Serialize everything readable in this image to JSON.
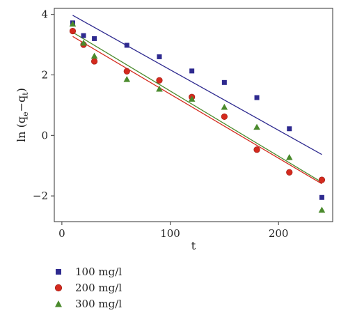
{
  "chart_data": {
    "type": "scatter",
    "xlabel": "t",
    "ylabel_parts": [
      "ln (q",
      "e",
      "−q",
      "t",
      ")"
    ],
    "xlim": [
      -7,
      250
    ],
    "ylim": [
      -2.85,
      4.2
    ],
    "xticks": [
      0,
      100,
      200
    ],
    "yticks": [
      -2,
      0,
      2,
      4
    ],
    "ytick_labels": [
      "−2",
      "0",
      "2",
      "4"
    ],
    "grid": false,
    "legend_position": "bottom-left, below plot",
    "series": [
      {
        "name": "100 mg/l",
        "marker": "square",
        "color": "#2e2a8f",
        "x": [
          10,
          20,
          30,
          60,
          90,
          120,
          150,
          180,
          210,
          240
        ],
        "y": [
          3.72,
          3.3,
          3.2,
          2.98,
          2.6,
          2.13,
          1.75,
          1.25,
          0.22,
          -2.05
        ],
        "fit": {
          "x": [
            10,
            240
          ],
          "y": [
            3.97,
            -0.63
          ]
        }
      },
      {
        "name": "200 mg/l",
        "marker": "circle",
        "color": "#d42a1e",
        "x": [
          10,
          20,
          30,
          60,
          90,
          120,
          150,
          180,
          210,
          240
        ],
        "y": [
          3.45,
          3.0,
          2.45,
          2.12,
          1.82,
          1.27,
          0.62,
          -0.47,
          -1.22,
          -1.47
        ],
        "fit": {
          "x": [
            10,
            240
          ],
          "y": [
            3.27,
            -1.6
          ]
        }
      },
      {
        "name": "300 mg/l",
        "marker": "triangle",
        "color": "#4a8a2c",
        "x": [
          10,
          20,
          30,
          60,
          90,
          120,
          150,
          180,
          210,
          240
        ],
        "y": [
          3.68,
          3.05,
          2.62,
          1.85,
          1.53,
          1.2,
          0.93,
          0.27,
          -0.73,
          -2.47
        ],
        "fit": {
          "x": [
            10,
            240
          ],
          "y": [
            3.41,
            -1.55
          ]
        }
      }
    ]
  }
}
